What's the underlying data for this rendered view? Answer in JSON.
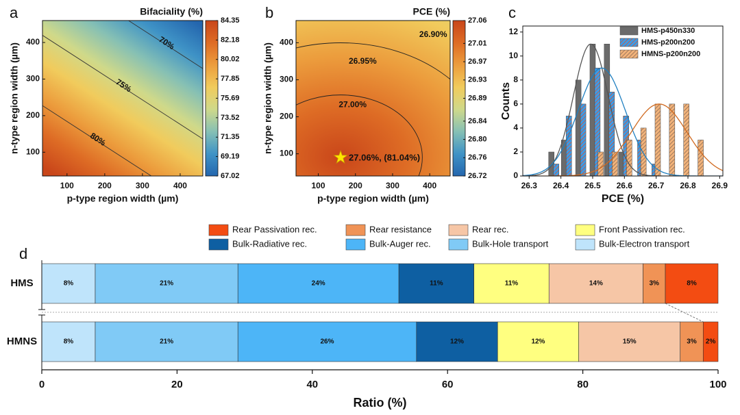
{
  "chart_data": [
    {
      "type": "contour",
      "panel": "a",
      "title": "Bifaciality (%)",
      "xlabel": "p-type region width (µm)",
      "ylabel": "n-type region width (µm)",
      "xlim": [
        35,
        460
      ],
      "ylim": [
        35,
        460
      ],
      "xticks": [
        100,
        200,
        300,
        400
      ],
      "yticks": [
        100,
        200,
        300,
        400
      ],
      "clim": [
        67.02,
        84.35
      ],
      "cticks": [
        67.02,
        69.19,
        71.35,
        73.52,
        75.69,
        77.85,
        80.02,
        82.18,
        84.35
      ],
      "colormap": [
        "#2466ae",
        "#3f93c6",
        "#86c0b4",
        "#cfd98a",
        "#f1cb5c",
        "#ec9d3d",
        "#de6c25",
        "#c9461a"
      ],
      "contours": [
        70,
        75,
        80
      ],
      "contour_labels": [
        "70%",
        "75%",
        "80%"
      ]
    },
    {
      "type": "contour",
      "panel": "b",
      "title": "PCE (%)",
      "xlabel": "p-type region width (µm)",
      "ylabel": "n-type region width (µm)",
      "xlim": [
        40,
        455
      ],
      "ylim": [
        40,
        460
      ],
      "xticks": [
        100,
        200,
        300,
        400
      ],
      "yticks": [
        100,
        200,
        300,
        400
      ],
      "clim": [
        26.72,
        27.06
      ],
      "cticks": [
        26.72,
        26.76,
        {
          "value": 26.8,
          "label": "26.80"
        },
        26.84,
        26.89,
        26.93,
        26.97,
        27.01,
        27.06
      ],
      "colormap": [
        "#2466ae",
        "#3f93c6",
        "#86c0b4",
        "#cfd98a",
        "#f1cb5c",
        "#ec9d3d",
        "#de6c25",
        "#c9461a"
      ],
      "contours": [
        26.9,
        26.95,
        27.0
      ],
      "contour_labels": [
        "26.90%",
        "26.95%",
        "27.00%"
      ],
      "optimum": {
        "x": 160,
        "y": 90,
        "label": "27.06%, (81.04%)"
      }
    },
    {
      "type": "bar",
      "panel": "c",
      "xlabel": "PCE (%)",
      "ylabel": "Counts",
      "xlim": [
        26.28,
        26.91
      ],
      "ylim": [
        0,
        12.5
      ],
      "xticks": [
        26.3,
        26.4,
        26.5,
        26.6,
        26.7,
        26.8,
        26.9
      ],
      "yticks": [
        0,
        2,
        4,
        6,
        8,
        10,
        12
      ],
      "legend": "upper right",
      "fit": true,
      "series": [
        {
          "name": "HMS-p450n330",
          "color": "#6b6b6b",
          "line_color": "#555555",
          "label_color": "#222222",
          "x": [
            26.37,
            26.41,
            26.455,
            26.5,
            26.545,
            26.59
          ],
          "values": [
            2,
            3,
            8,
            11,
            11,
            2
          ]
        },
        {
          "name": "HMS-p200n200",
          "color": "#3a9ce8",
          "hatch": "#e0502a",
          "line_color": "#1f7fc0",
          "label_color": "#2f9be6",
          "x": [
            26.385,
            26.425,
            26.47,
            26.515,
            26.56,
            26.605,
            26.65,
            26.695
          ],
          "values": [
            1,
            5,
            6,
            9,
            7,
            5,
            3,
            1
          ]
        },
        {
          "name": "HMNS-p200n200",
          "color": "#f2b37a",
          "hatch": "#8a6a55",
          "line_color": "#d06a20",
          "label_color": "#e8823a",
          "x": [
            26.525,
            26.57,
            26.615,
            26.66,
            26.705,
            26.75,
            26.795,
            26.84
          ],
          "values": [
            2,
            2,
            3,
            4,
            6,
            6,
            6,
            3
          ]
        }
      ]
    },
    {
      "type": "stacked_barh",
      "panel": "d",
      "xlabel": "Ratio (%)",
      "categories": [
        "HMS",
        "HMNS"
      ],
      "category_colors": [
        "#3aa0e8",
        "#e8823a"
      ],
      "xlim": [
        0,
        100
      ],
      "xticks": [
        0,
        20,
        40,
        60,
        80,
        100
      ],
      "series": [
        {
          "name": "Bulk-Electron transport",
          "color": "#bfe4fb",
          "values": [
            7.9,
            7.9
          ],
          "value_labels": [
            "8%",
            "8%"
          ]
        },
        {
          "name": "Bulk-Hole transport",
          "color": "#80caf6",
          "values": [
            21.1,
            21.1
          ],
          "value_labels": [
            "21%",
            "21%"
          ]
        },
        {
          "name": "Bulk-Auger rec.",
          "color": "#4db5f7",
          "values": [
            23.8,
            26.4
          ],
          "value_labels": [
            "24%",
            "26%"
          ]
        },
        {
          "name": "Bulk-Radiative rec.",
          "color": "#0e5fa2",
          "values": [
            11.1,
            12.0
          ],
          "value_labels": [
            "11%",
            "12%"
          ]
        },
        {
          "name": "Front Passivation rec.",
          "color": "#ffff80",
          "values": [
            11.1,
            12.0
          ],
          "value_labels": [
            "11%",
            "12%"
          ]
        },
        {
          "name": "Rear rec.",
          "color": "#f6c6a6",
          "values": [
            13.9,
            15.0
          ],
          "value_labels": [
            "14%",
            "15%"
          ]
        },
        {
          "name": "Rear resistance",
          "color": "#f09356",
          "values": [
            3.3,
            3.4
          ],
          "value_labels": [
            "3%",
            "3%"
          ]
        },
        {
          "name": "Rear Passivation rec.",
          "color": "#f34c12",
          "values": [
            7.8,
            2.2
          ],
          "value_labels": [
            "8%",
            "2%"
          ]
        }
      ]
    }
  ]
}
